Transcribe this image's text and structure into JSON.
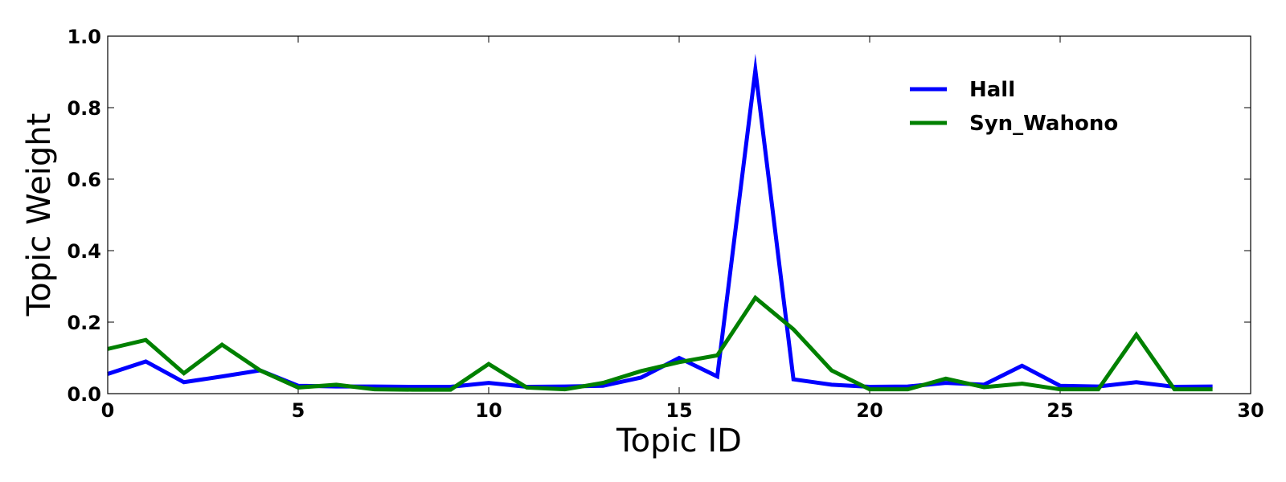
{
  "chart_data": {
    "type": "line",
    "xlabel": "Topic ID",
    "ylabel": "Topic Weight",
    "xlim": [
      0,
      30
    ],
    "ylim": [
      0.0,
      1.0
    ],
    "xticks": [
      "0",
      "5",
      "10",
      "15",
      "20",
      "25",
      "30"
    ],
    "yticks": [
      "0.0",
      "0.2",
      "0.4",
      "0.6",
      "0.8",
      "1.0"
    ],
    "grid": false,
    "legend": "top-right",
    "x": [
      0,
      1,
      2,
      3,
      4,
      5,
      6,
      7,
      8,
      9,
      10,
      11,
      12,
      13,
      14,
      15,
      16,
      17,
      18,
      19,
      20,
      21,
      22,
      23,
      24,
      25,
      26,
      27,
      28,
      29
    ],
    "series": [
      {
        "name": "Hall",
        "color": "#0000ff",
        "values": [
          0.055,
          0.09,
          0.032,
          0.048,
          0.065,
          0.022,
          0.02,
          0.02,
          0.019,
          0.019,
          0.03,
          0.019,
          0.02,
          0.022,
          0.045,
          0.1,
          0.048,
          0.905,
          0.04,
          0.025,
          0.019,
          0.02,
          0.03,
          0.025,
          0.078,
          0.022,
          0.02,
          0.032,
          0.019,
          0.02
        ]
      },
      {
        "name": "Syn_Wahono",
        "color": "#008000",
        "values": [
          0.125,
          0.15,
          0.057,
          0.137,
          0.065,
          0.017,
          0.025,
          0.012,
          0.011,
          0.011,
          0.083,
          0.017,
          0.012,
          0.03,
          0.063,
          0.088,
          0.107,
          0.268,
          0.18,
          0.065,
          0.012,
          0.012,
          0.042,
          0.018,
          0.028,
          0.012,
          0.012,
          0.165,
          0.012,
          0.012
        ]
      }
    ]
  }
}
